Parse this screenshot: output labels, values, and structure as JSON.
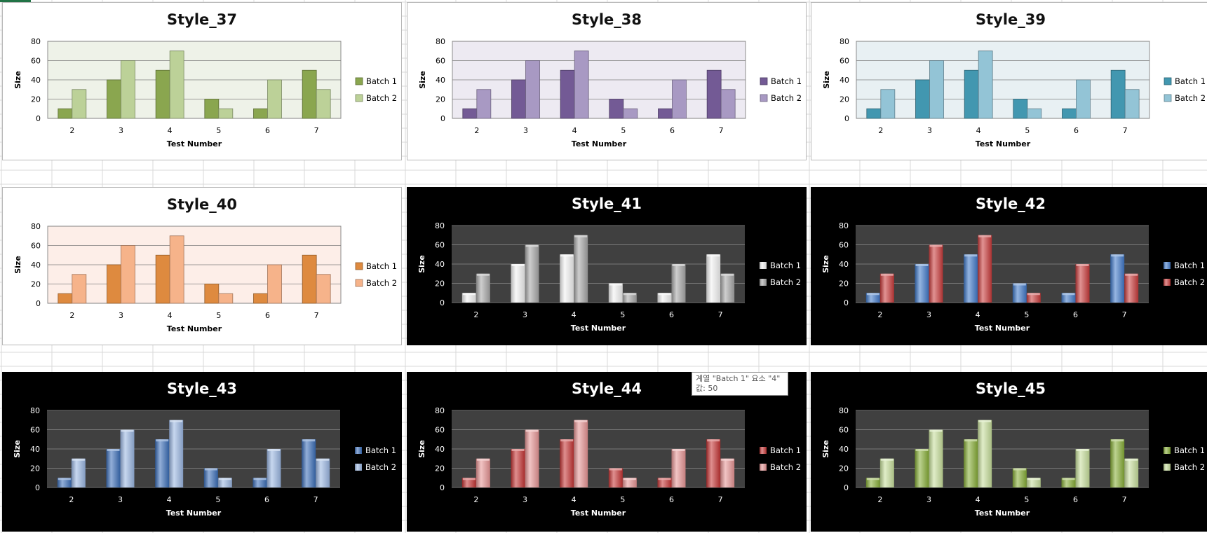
{
  "tooltip": {
    "line1": "계열 \"Batch 1\" 요소 \"4\"",
    "line2": "값: 50"
  },
  "chart_data": [
    {
      "type": "bar",
      "title": "Style_37",
      "xlabel": "Test Number",
      "ylabel": "Size",
      "categories": [
        "2",
        "3",
        "4",
        "5",
        "6",
        "7"
      ],
      "ylim": [
        0,
        80
      ],
      "yticks": [
        0,
        20,
        40,
        60,
        80
      ],
      "grid": true,
      "legend": "right",
      "theme": "light",
      "plot_bg": "#eef2e8",
      "series": [
        {
          "name": "Batch 1",
          "values": [
            10,
            40,
            50,
            20,
            10,
            50
          ],
          "color": "#8aa64f"
        },
        {
          "name": "Batch 2",
          "values": [
            30,
            60,
            70,
            10,
            40,
            30
          ],
          "color": "#bcd198"
        }
      ]
    },
    {
      "type": "bar",
      "title": "Style_38",
      "xlabel": "Test Number",
      "ylabel": "Size",
      "categories": [
        "2",
        "3",
        "4",
        "5",
        "6",
        "7"
      ],
      "ylim": [
        0,
        80
      ],
      "yticks": [
        0,
        20,
        40,
        60,
        80
      ],
      "grid": true,
      "legend": "right",
      "theme": "light",
      "plot_bg": "#edeaf2",
      "series": [
        {
          "name": "Batch 1",
          "values": [
            10,
            40,
            50,
            20,
            10,
            50
          ],
          "color": "#735a95"
        },
        {
          "name": "Batch 2",
          "values": [
            30,
            60,
            70,
            10,
            40,
            30
          ],
          "color": "#a899c3"
        }
      ]
    },
    {
      "type": "bar",
      "title": "Style_39",
      "xlabel": "Test Number",
      "ylabel": "Size",
      "categories": [
        "2",
        "3",
        "4",
        "5",
        "6",
        "7"
      ],
      "ylim": [
        0,
        80
      ],
      "yticks": [
        0,
        20,
        40,
        60,
        80
      ],
      "grid": true,
      "legend": "right",
      "theme": "light",
      "plot_bg": "#e8f0f3",
      "series": [
        {
          "name": "Batch 1",
          "values": [
            10,
            40,
            50,
            20,
            10,
            50
          ],
          "color": "#4297b0"
        },
        {
          "name": "Batch 2",
          "values": [
            30,
            60,
            70,
            10,
            40,
            30
          ],
          "color": "#93c4d6"
        }
      ]
    },
    {
      "type": "bar",
      "title": "Style_40",
      "xlabel": "Test Number",
      "ylabel": "Size",
      "categories": [
        "2",
        "3",
        "4",
        "5",
        "6",
        "7"
      ],
      "ylim": [
        0,
        80
      ],
      "yticks": [
        0,
        20,
        40,
        60,
        80
      ],
      "grid": true,
      "legend": "right",
      "theme": "light",
      "plot_bg": "#fdeee8",
      "series": [
        {
          "name": "Batch 1",
          "values": [
            10,
            40,
            50,
            20,
            10,
            50
          ],
          "color": "#de8a3f"
        },
        {
          "name": "Batch 2",
          "values": [
            30,
            60,
            70,
            10,
            40,
            30
          ],
          "color": "#f6b38a"
        }
      ]
    },
    {
      "type": "bar",
      "title": "Style_41",
      "xlabel": "Test Number",
      "ylabel": "Size",
      "categories": [
        "2",
        "3",
        "4",
        "5",
        "6",
        "7"
      ],
      "ylim": [
        0,
        80
      ],
      "yticks": [
        0,
        20,
        40,
        60,
        80
      ],
      "grid": true,
      "legend": "right",
      "theme": "dark",
      "plot_bg": "#404040",
      "series": [
        {
          "name": "Batch 1",
          "values": [
            10,
            40,
            50,
            20,
            10,
            50
          ],
          "color": "#f2f2f2"
        },
        {
          "name": "Batch 2",
          "values": [
            30,
            60,
            70,
            10,
            40,
            30
          ],
          "color": "#a6a6a6"
        }
      ]
    },
    {
      "type": "bar",
      "title": "Style_42",
      "xlabel": "Test Number",
      "ylabel": "Size",
      "categories": [
        "2",
        "3",
        "4",
        "5",
        "6",
        "7"
      ],
      "ylim": [
        0,
        80
      ],
      "yticks": [
        0,
        20,
        40,
        60,
        80
      ],
      "grid": true,
      "legend": "right",
      "theme": "dark",
      "plot_bg": "#404040",
      "series": [
        {
          "name": "Batch 1",
          "values": [
            10,
            40,
            50,
            20,
            10,
            50
          ],
          "color": "#3f78c8"
        },
        {
          "name": "Batch 2",
          "values": [
            30,
            60,
            70,
            10,
            40,
            30
          ],
          "color": "#c83a3a"
        }
      ]
    },
    {
      "type": "bar",
      "title": "Style_43",
      "xlabel": "Test Number",
      "ylabel": "Size",
      "categories": [
        "2",
        "3",
        "4",
        "5",
        "6",
        "7"
      ],
      "ylim": [
        0,
        80
      ],
      "yticks": [
        0,
        20,
        40,
        60,
        80
      ],
      "grid": true,
      "legend": "right",
      "theme": "dark",
      "plot_bg": "#404040",
      "series": [
        {
          "name": "Batch 1",
          "values": [
            10,
            40,
            50,
            20,
            10,
            50
          ],
          "color": "#3a6db8"
        },
        {
          "name": "Batch 2",
          "values": [
            30,
            60,
            70,
            10,
            40,
            30
          ],
          "color": "#9ab6e2"
        }
      ]
    },
    {
      "type": "bar",
      "title": "Style_44",
      "xlabel": "Test Number",
      "ylabel": "Size",
      "categories": [
        "2",
        "3",
        "4",
        "5",
        "6",
        "7"
      ],
      "ylim": [
        0,
        80
      ],
      "yticks": [
        0,
        20,
        40,
        60,
        80
      ],
      "grid": true,
      "legend": "right",
      "theme": "dark",
      "plot_bg": "#404040",
      "series": [
        {
          "name": "Batch 1",
          "values": [
            10,
            40,
            50,
            20,
            10,
            50
          ],
          "color": "#c53434"
        },
        {
          "name": "Batch 2",
          "values": [
            30,
            60,
            70,
            10,
            40,
            30
          ],
          "color": "#e69494"
        }
      ]
    },
    {
      "type": "bar",
      "title": "Style_45",
      "xlabel": "Test Number",
      "ylabel": "Size",
      "categories": [
        "2",
        "3",
        "4",
        "5",
        "6",
        "7"
      ],
      "ylim": [
        0,
        80
      ],
      "yticks": [
        0,
        20,
        40,
        60,
        80
      ],
      "grid": true,
      "legend": "right",
      "theme": "dark",
      "plot_bg": "#404040",
      "series": [
        {
          "name": "Batch 1",
          "values": [
            10,
            40,
            50,
            20,
            10,
            50
          ],
          "color": "#86ad36"
        },
        {
          "name": "Batch 2",
          "values": [
            30,
            60,
            70,
            10,
            40,
            30
          ],
          "color": "#c7de9b"
        }
      ]
    }
  ]
}
